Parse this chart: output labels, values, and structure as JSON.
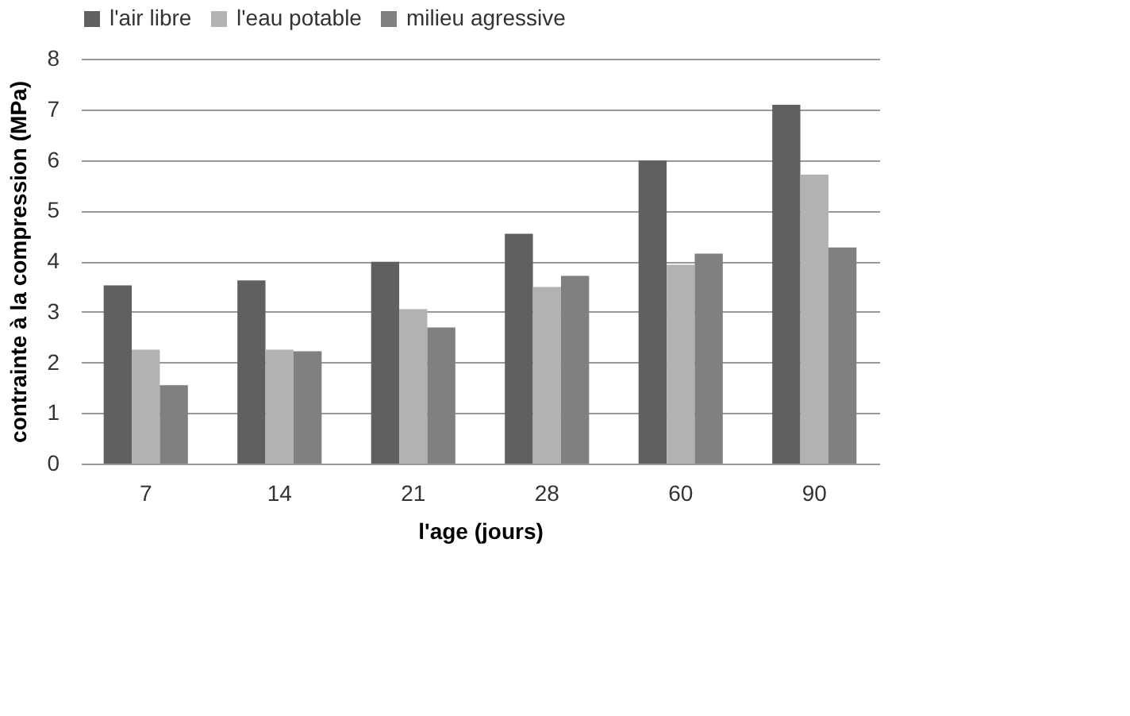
{
  "chart_data": {
    "type": "bar",
    "xlabel": "l'age (jours)",
    "ylabel": "contrainte à la compression (MPa)",
    "categories": [
      "7",
      "14",
      "21",
      "28",
      "60",
      "90"
    ],
    "series": [
      {
        "name": "l'air libre",
        "color": "#606060",
        "values": [
          3.52,
          3.62,
          3.99,
          4.54,
          5.99,
          7.09
        ]
      },
      {
        "name": "l'eau potable",
        "color": "#b2b2b2",
        "values": [
          2.25,
          2.25,
          3.05,
          3.49,
          3.93,
          5.71
        ]
      },
      {
        "name": "milieu agressive",
        "color": "#808080",
        "values": [
          1.55,
          2.22,
          2.69,
          3.71,
          4.15,
          4.27
        ]
      }
    ],
    "ylim": [
      0,
      8
    ],
    "yticks": [
      0,
      1,
      2,
      3,
      4,
      5,
      6,
      7,
      8
    ],
    "grid": "y",
    "legend": "top"
  }
}
